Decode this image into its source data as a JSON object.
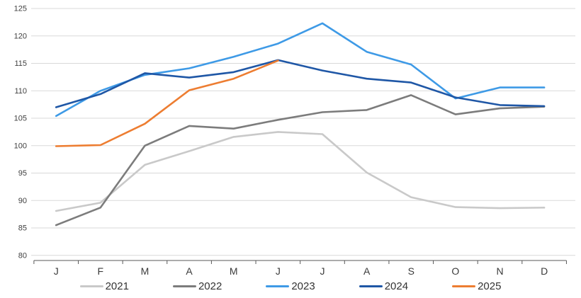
{
  "chart_data": {
    "type": "line",
    "title": "",
    "xlabel": "",
    "ylabel": "",
    "x_categories": [
      "J",
      "F",
      "M",
      "A",
      "M",
      "J",
      "J",
      "A",
      "S",
      "O",
      "N",
      "D"
    ],
    "y_axis": {
      "min": 80,
      "max": 125,
      "step": 5,
      "tick_labels": [
        "80",
        "85",
        "90",
        "95",
        "100",
        "105",
        "110",
        "115",
        "120",
        "125"
      ]
    },
    "grid": true,
    "legend_position": "bottom",
    "gridline_color": "#d9d9d9",
    "axis_color": "#595959",
    "label_color": "#404040",
    "series": [
      {
        "name": "2021",
        "color": "#c9c9c9",
        "values": [
          88.1,
          89.6,
          96.5,
          99.0,
          101.6,
          102.5,
          102.1,
          95.1,
          90.6,
          88.8,
          88.6,
          88.7
        ]
      },
      {
        "name": "2022",
        "color": "#7c7c7c",
        "values": [
          85.5,
          88.7,
          100.0,
          103.6,
          103.1,
          104.7,
          106.1,
          106.5,
          109.2,
          105.7,
          106.8,
          107.1
        ]
      },
      {
        "name": "2023",
        "color": "#3e9ae6",
        "values": [
          105.4,
          110.0,
          112.9,
          114.1,
          116.2,
          118.6,
          122.3,
          117.1,
          114.8,
          108.6,
          110.6,
          110.6
        ]
      },
      {
        "name": "2024",
        "color": "#1f57a6",
        "values": [
          107.0,
          109.4,
          113.2,
          112.4,
          113.4,
          115.6,
          113.7,
          112.2,
          111.5,
          108.8,
          107.4,
          107.2
        ]
      },
      {
        "name": "2025",
        "color": "#ed7d31",
        "values": [
          99.9,
          100.1,
          104.0,
          110.1,
          112.2,
          115.5
        ]
      }
    ]
  }
}
